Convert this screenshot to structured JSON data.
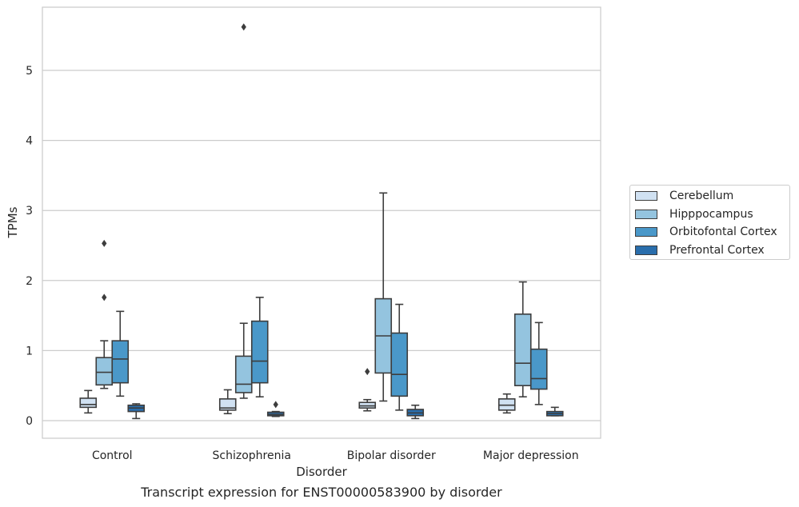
{
  "chart_data": {
    "type": "box",
    "caption": "Transcript expression for ENST00000583900 by disorder",
    "xlabel": "Disorder",
    "ylabel": "TPMs",
    "ylim": [
      -0.25,
      5.9
    ],
    "yticks": [
      0,
      1,
      2,
      3,
      4,
      5
    ],
    "grid": "horizontal",
    "legend_position": "right",
    "categories": [
      "Control",
      "Schizophrenia",
      "Bipolar disorder",
      "Major depression"
    ],
    "series": [
      {
        "name": "Cerebellum",
        "color": "#d0e1f2",
        "boxes": [
          {
            "whislo": 0.11,
            "q1": 0.19,
            "med": 0.23,
            "q3": 0.32,
            "whishi": 0.43,
            "fliers": []
          },
          {
            "whislo": 0.1,
            "q1": 0.15,
            "med": 0.18,
            "q3": 0.31,
            "whishi": 0.44,
            "fliers": []
          },
          {
            "whislo": 0.14,
            "q1": 0.18,
            "med": 0.21,
            "q3": 0.26,
            "whishi": 0.3,
            "fliers": [
              0.7
            ]
          },
          {
            "whislo": 0.11,
            "q1": 0.15,
            "med": 0.22,
            "q3": 0.31,
            "whishi": 0.38,
            "fliers": []
          }
        ]
      },
      {
        "name": "Hipppocampus",
        "color": "#94c4df",
        "boxes": [
          {
            "whislo": 0.46,
            "q1": 0.51,
            "med": 0.69,
            "q3": 0.9,
            "whishi": 1.14,
            "fliers": [
              1.76,
              2.53
            ]
          },
          {
            "whislo": 0.32,
            "q1": 0.4,
            "med": 0.52,
            "q3": 0.92,
            "whishi": 1.39,
            "fliers": [
              5.62
            ]
          },
          {
            "whislo": 0.28,
            "q1": 0.68,
            "med": 1.21,
            "q3": 1.74,
            "whishi": 3.25,
            "fliers": []
          },
          {
            "whislo": 0.34,
            "q1": 0.5,
            "med": 0.82,
            "q3": 1.52,
            "whishi": 1.98,
            "fliers": []
          }
        ]
      },
      {
        "name": "Orbitofontal Cortex",
        "color": "#4a98c9",
        "boxes": [
          {
            "whislo": 0.35,
            "q1": 0.54,
            "med": 0.88,
            "q3": 1.14,
            "whishi": 1.56,
            "fliers": []
          },
          {
            "whislo": 0.34,
            "q1": 0.54,
            "med": 0.85,
            "q3": 1.42,
            "whishi": 1.76,
            "fliers": []
          },
          {
            "whislo": 0.15,
            "q1": 0.35,
            "med": 0.66,
            "q3": 1.25,
            "whishi": 1.66,
            "fliers": []
          },
          {
            "whislo": 0.23,
            "q1": 0.45,
            "med": 0.6,
            "q3": 1.02,
            "whishi": 1.4,
            "fliers": []
          }
        ]
      },
      {
        "name": "Prefrontal Cortex",
        "color": "#2a6eac",
        "boxes": [
          {
            "whislo": 0.03,
            "q1": 0.13,
            "med": 0.18,
            "q3": 0.22,
            "whishi": 0.24,
            "fliers": []
          },
          {
            "whislo": 0.06,
            "q1": 0.07,
            "med": 0.09,
            "q3": 0.12,
            "whishi": 0.13,
            "fliers": [
              0.23
            ]
          },
          {
            "whislo": 0.03,
            "q1": 0.07,
            "med": 0.11,
            "q3": 0.16,
            "whishi": 0.22,
            "fliers": []
          },
          {
            "whislo": 0.07,
            "q1": 0.07,
            "med": 0.1,
            "q3": 0.13,
            "whishi": 0.19,
            "fliers": []
          }
        ]
      }
    ]
  }
}
